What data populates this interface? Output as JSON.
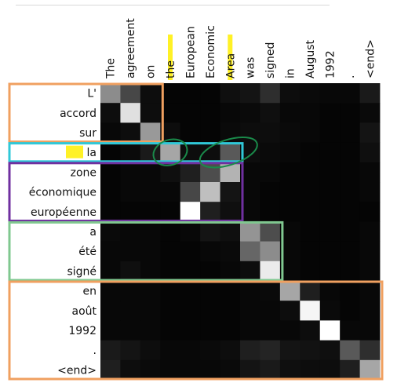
{
  "figure": {
    "source_tokens": [
      "The",
      "agreement",
      "on",
      "the",
      "European",
      "Economic",
      "Area",
      "was",
      "signed",
      "in",
      "August",
      "1992",
      ".",
      "<end>"
    ],
    "target_tokens": [
      "L'",
      "accord",
      "sur",
      "la",
      "zone",
      "économique",
      "européenne",
      "a",
      "été",
      "signé",
      "en",
      "août",
      "1992",
      ".",
      "<end>"
    ],
    "highlighted_source_indices": [
      3,
      6
    ],
    "highlighted_target_indices": [
      3
    ],
    "highlight_color": "#ffee00",
    "circle_color": "#1a8a4a",
    "circled_cells": [
      [
        3,
        3
      ],
      [
        3,
        6
      ]
    ]
  },
  "chart_data": {
    "type": "heatmap",
    "title": "",
    "xlabel": "",
    "ylabel": "",
    "x": [
      "The",
      "agreement",
      "on",
      "the",
      "European",
      "Economic",
      "Area",
      "was",
      "signed",
      "in",
      "August",
      "1992",
      ".",
      "<end>"
    ],
    "y": [
      "L'",
      "accord",
      "sur",
      "la",
      "zone",
      "économique",
      "européenne",
      "a",
      "été",
      "signé",
      "en",
      "août",
      "1992",
      ".",
      "<end>"
    ],
    "colormap": "gray",
    "values": [
      [
        0.55,
        0.28,
        0.05,
        0.02,
        0.02,
        0.02,
        0.06,
        0.08,
        0.18,
        0.05,
        0.04,
        0.03,
        0.03,
        0.1
      ],
      [
        0.05,
        0.88,
        0.05,
        0.02,
        0.02,
        0.02,
        0.03,
        0.04,
        0.06,
        0.03,
        0.03,
        0.02,
        0.02,
        0.04
      ],
      [
        0.03,
        0.05,
        0.6,
        0.05,
        0.02,
        0.02,
        0.04,
        0.05,
        0.05,
        0.04,
        0.03,
        0.02,
        0.02,
        0.08
      ],
      [
        0.02,
        0.04,
        0.1,
        0.65,
        0.05,
        0.05,
        0.35,
        0.05,
        0.04,
        0.03,
        0.02,
        0.02,
        0.02,
        0.06
      ],
      [
        0.02,
        0.03,
        0.03,
        0.06,
        0.12,
        0.3,
        0.7,
        0.03,
        0.03,
        0.02,
        0.02,
        0.02,
        0.02,
        0.03
      ],
      [
        0.02,
        0.03,
        0.03,
        0.03,
        0.28,
        0.75,
        0.08,
        0.03,
        0.02,
        0.02,
        0.02,
        0.02,
        0.02,
        0.03
      ],
      [
        0.02,
        0.02,
        0.02,
        0.02,
        1.0,
        0.12,
        0.06,
        0.03,
        0.02,
        0.02,
        0.02,
        0.02,
        0.02,
        0.02
      ],
      [
        0.04,
        0.03,
        0.03,
        0.02,
        0.03,
        0.08,
        0.06,
        0.58,
        0.3,
        0.03,
        0.02,
        0.02,
        0.02,
        0.03
      ],
      [
        0.03,
        0.03,
        0.03,
        0.02,
        0.02,
        0.03,
        0.04,
        0.4,
        0.55,
        0.03,
        0.02,
        0.02,
        0.02,
        0.03
      ],
      [
        0.03,
        0.06,
        0.03,
        0.02,
        0.02,
        0.02,
        0.03,
        0.05,
        0.92,
        0.03,
        0.02,
        0.02,
        0.02,
        0.03
      ],
      [
        0.03,
        0.03,
        0.03,
        0.02,
        0.02,
        0.02,
        0.02,
        0.03,
        0.04,
        0.65,
        0.12,
        0.03,
        0.02,
        0.03
      ],
      [
        0.03,
        0.03,
        0.03,
        0.02,
        0.02,
        0.02,
        0.02,
        0.03,
        0.03,
        0.05,
        0.96,
        0.04,
        0.02,
        0.03
      ],
      [
        0.03,
        0.03,
        0.03,
        0.02,
        0.02,
        0.02,
        0.02,
        0.03,
        0.03,
        0.03,
        0.05,
        1.0,
        0.03,
        0.03
      ],
      [
        0.1,
        0.08,
        0.05,
        0.03,
        0.03,
        0.04,
        0.05,
        0.12,
        0.14,
        0.08,
        0.07,
        0.06,
        0.35,
        0.18
      ],
      [
        0.12,
        0.05,
        0.04,
        0.03,
        0.03,
        0.03,
        0.04,
        0.08,
        0.1,
        0.06,
        0.05,
        0.05,
        0.12,
        0.65
      ]
    ]
  },
  "annotations": {
    "groups": [
      {
        "name": "group-l-accord-sur",
        "color": "#f0a060",
        "rows": [
          0,
          2
        ],
        "cols": [
          0,
          2
        ]
      },
      {
        "name": "group-la",
        "color": "#30c8d8",
        "rows": [
          3,
          3
        ],
        "cols": [
          0,
          6
        ]
      },
      {
        "name": "group-zone-economique-europeenne",
        "color": "#7030a0",
        "rows": [
          4,
          6
        ],
        "cols": [
          0,
          6
        ]
      },
      {
        "name": "group-a-ete-signe",
        "color": "#80c890",
        "rows": [
          7,
          9
        ],
        "cols": [
          0,
          8
        ]
      },
      {
        "name": "group-en-aout-1992-end",
        "color": "#f0a060",
        "rows": [
          10,
          14
        ],
        "cols": [
          0,
          13
        ]
      }
    ]
  }
}
